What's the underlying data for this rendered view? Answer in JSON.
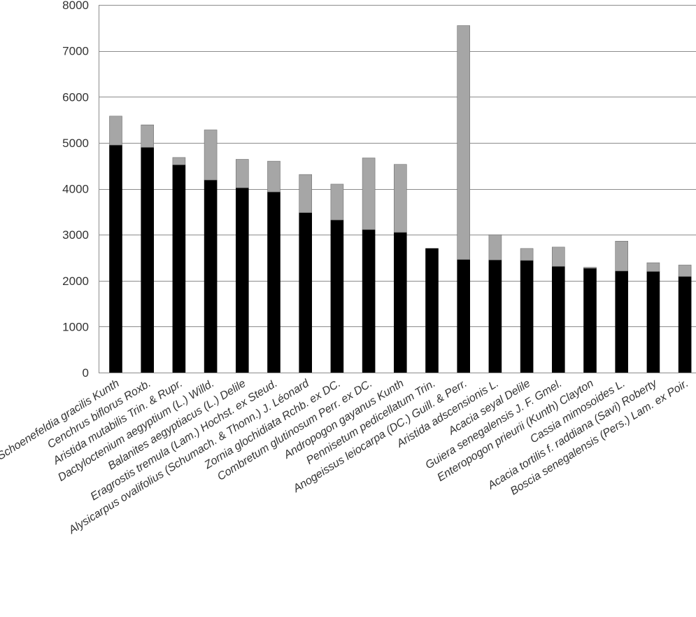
{
  "chart_data": {
    "type": "bar",
    "stacked": true,
    "title": "",
    "xlabel": "",
    "ylabel": "",
    "ylim": [
      0,
      8000
    ],
    "yticks": [
      0,
      1000,
      2000,
      3000,
      4000,
      5000,
      6000,
      7000,
      8000
    ],
    "grid": true,
    "legend": "none",
    "categories": [
      "Schoenefeldia gracilis Kunth",
      "Cenchrus biflorus Roxb.",
      "Aristida mutabilis Trin. & Rupr.",
      "Dactyloctenium aegyptium (L.) Willd.",
      "Balanites aegyptiacus (L.) Delile",
      "Eragrostis tremula (Lam.) Hochst. ex Steud.",
      "Alysicarpus ovalifolius (Schumach. & Thonn.) J. Léonard",
      "Zornia glochidiata Rchb. ex DC.",
      "Combretum glutinosum Perr. ex DC.",
      "Andropogon gayanus Kunth",
      "Pennisetum pedicellatum Trin.",
      "Anogeissus leiocarpa (DC.) Guill. & Perr.",
      "Aristida adscensionis L.",
      "Acacia seyal Delile",
      "Guiera senegalensis J. F. Gmel.",
      "Enteropogon prieurii (Kunth) Clayton",
      "Cassia mimosoides L.",
      "Acacia tortilis f. raddiana (Savi) Roberty",
      "Boscia senegalensis (Pers.) Lam. ex Poir."
    ],
    "series": [
      {
        "color": "#000000",
        "values": [
          4950,
          4900,
          4520,
          4190,
          4020,
          3930,
          3480,
          3320,
          3110,
          3050,
          2700,
          2460,
          2450,
          2440,
          2310,
          2270,
          2210,
          2200,
          2090
        ]
      },
      {
        "color": "#a6a6a6",
        "values": [
          630,
          490,
          160,
          1090,
          620,
          670,
          830,
          780,
          1560,
          1480,
          0,
          5090,
          550,
          260,
          420,
          20,
          650,
          190,
          250
        ]
      }
    ]
  }
}
